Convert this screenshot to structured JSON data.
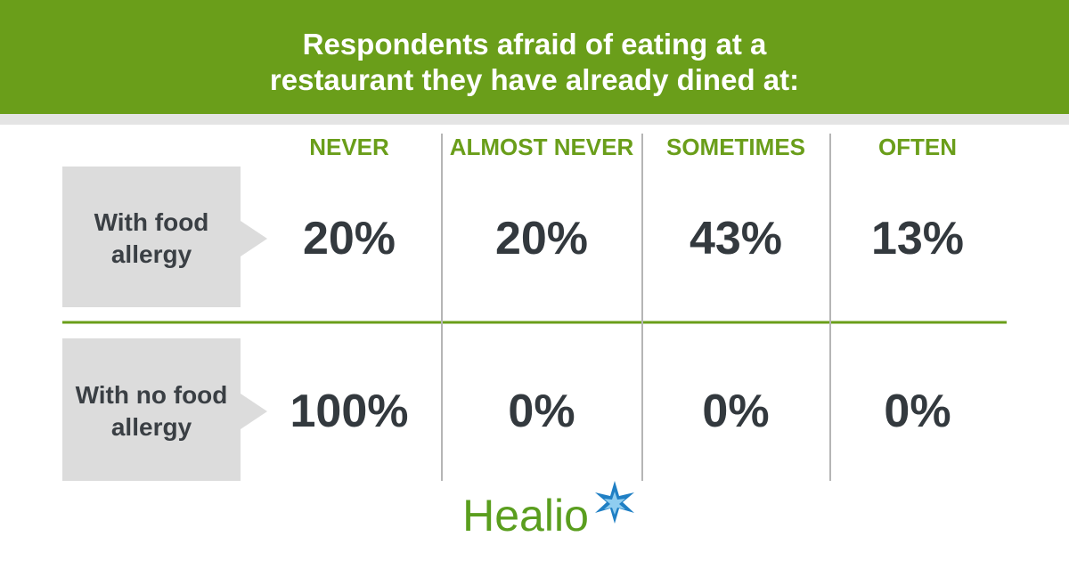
{
  "header": {
    "title_lines": [
      "Respondents afraid of eating at a",
      "restaurant they have already dined at:"
    ]
  },
  "table": {
    "columns": [
      "NEVER",
      "ALMOST NEVER",
      "SOMETIMES",
      "OFTEN"
    ],
    "rows": [
      {
        "label": "With food allergy",
        "cells": [
          "20%",
          "20%",
          "43%",
          "13%"
        ]
      },
      {
        "label": "With no food allergy",
        "cells": [
          "100%",
          "0%",
          "0%",
          "0%"
        ]
      }
    ]
  },
  "footer": {
    "logo": "Healio"
  }
}
